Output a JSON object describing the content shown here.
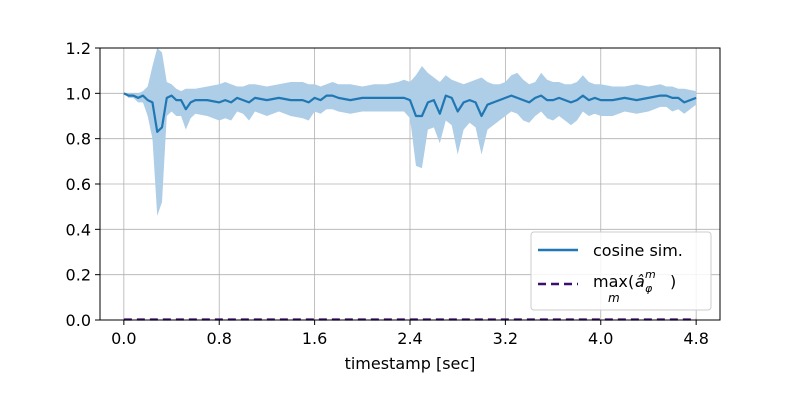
{
  "chart_data": {
    "type": "line",
    "title": "",
    "xlabel": "timestamp [sec]",
    "ylabel": "",
    "xlim": [
      -0.2,
      5.0
    ],
    "ylim": [
      0.0,
      1.2
    ],
    "xticks": [
      "0.0",
      "0.8",
      "1.6",
      "2.4",
      "3.2",
      "4.0",
      "4.8"
    ],
    "yticks": [
      "0.0",
      "0.2",
      "0.4",
      "0.6",
      "0.8",
      "1.0",
      "1.2"
    ],
    "grid": true,
    "legend_position": "lower-right",
    "series": [
      {
        "name": "cosine sim.",
        "color": "#1f77b4",
        "band_color": "#aecde6",
        "x": [
          0.0,
          0.04,
          0.08,
          0.12,
          0.16,
          0.2,
          0.24,
          0.28,
          0.32,
          0.36,
          0.4,
          0.44,
          0.48,
          0.52,
          0.56,
          0.6,
          0.7,
          0.8,
          0.85,
          0.9,
          0.95,
          1.0,
          1.05,
          1.1,
          1.2,
          1.3,
          1.4,
          1.5,
          1.55,
          1.6,
          1.65,
          1.7,
          1.75,
          1.8,
          1.9,
          2.0,
          2.1,
          2.2,
          2.3,
          2.35,
          2.4,
          2.45,
          2.5,
          2.55,
          2.6,
          2.65,
          2.7,
          2.75,
          2.8,
          2.85,
          2.9,
          2.95,
          3.0,
          3.05,
          3.1,
          3.15,
          3.2,
          3.25,
          3.3,
          3.35,
          3.4,
          3.45,
          3.5,
          3.55,
          3.6,
          3.65,
          3.7,
          3.75,
          3.8,
          3.85,
          3.9,
          3.95,
          4.0,
          4.1,
          4.2,
          4.3,
          4.4,
          4.5,
          4.55,
          4.6,
          4.65,
          4.7,
          4.8
        ],
        "values": [
          1.0,
          0.99,
          0.99,
          0.98,
          0.99,
          0.97,
          0.96,
          0.83,
          0.85,
          0.98,
          0.99,
          0.97,
          0.97,
          0.93,
          0.96,
          0.97,
          0.97,
          0.96,
          0.97,
          0.96,
          0.98,
          0.97,
          0.96,
          0.98,
          0.97,
          0.98,
          0.97,
          0.97,
          0.96,
          0.98,
          0.97,
          0.99,
          0.99,
          0.98,
          0.97,
          0.98,
          0.98,
          0.98,
          0.98,
          0.98,
          0.97,
          0.9,
          0.9,
          0.96,
          0.97,
          0.91,
          0.99,
          0.98,
          0.92,
          0.96,
          0.97,
          0.96,
          0.9,
          0.95,
          0.96,
          0.97,
          0.98,
          0.99,
          0.98,
          0.97,
          0.96,
          0.98,
          0.99,
          0.97,
          0.97,
          0.98,
          0.97,
          0.96,
          0.97,
          0.99,
          0.97,
          0.98,
          0.97,
          0.97,
          0.98,
          0.97,
          0.98,
          0.99,
          0.99,
          0.98,
          0.98,
          0.96,
          0.98
        ],
        "upper": [
          1.0,
          1.0,
          1.0,
          1.0,
          1.01,
          1.03,
          1.12,
          1.2,
          1.18,
          1.05,
          1.04,
          1.02,
          1.01,
          1.02,
          1.02,
          1.02,
          1.03,
          1.04,
          1.05,
          1.04,
          1.03,
          1.03,
          1.04,
          1.04,
          1.03,
          1.04,
          1.05,
          1.05,
          1.04,
          1.04,
          1.03,
          1.04,
          1.05,
          1.04,
          1.04,
          1.03,
          1.04,
          1.04,
          1.05,
          1.06,
          1.05,
          1.08,
          1.12,
          1.09,
          1.07,
          1.05,
          1.08,
          1.06,
          1.05,
          1.04,
          1.05,
          1.06,
          1.07,
          1.05,
          1.04,
          1.04,
          1.05,
          1.08,
          1.09,
          1.06,
          1.04,
          1.05,
          1.09,
          1.06,
          1.05,
          1.05,
          1.04,
          1.04,
          1.05,
          1.08,
          1.05,
          1.04,
          1.04,
          1.03,
          1.03,
          1.04,
          1.03,
          1.04,
          1.03,
          1.03,
          1.02,
          1.02,
          1.01
        ],
        "lower": [
          1.0,
          0.98,
          0.98,
          0.96,
          0.96,
          0.9,
          0.8,
          0.46,
          0.52,
          0.9,
          0.92,
          0.9,
          0.9,
          0.84,
          0.89,
          0.91,
          0.9,
          0.88,
          0.89,
          0.88,
          0.92,
          0.91,
          0.88,
          0.92,
          0.9,
          0.92,
          0.9,
          0.89,
          0.88,
          0.92,
          0.91,
          0.93,
          0.93,
          0.92,
          0.91,
          0.92,
          0.92,
          0.92,
          0.92,
          0.92,
          0.89,
          0.68,
          0.67,
          0.84,
          0.85,
          0.78,
          0.88,
          0.86,
          0.73,
          0.84,
          0.87,
          0.85,
          0.73,
          0.84,
          0.86,
          0.88,
          0.9,
          0.92,
          0.91,
          0.88,
          0.87,
          0.9,
          0.92,
          0.89,
          0.88,
          0.9,
          0.88,
          0.86,
          0.88,
          0.92,
          0.9,
          0.91,
          0.9,
          0.9,
          0.92,
          0.91,
          0.92,
          0.94,
          0.94,
          0.92,
          0.93,
          0.91,
          0.95
        ]
      },
      {
        "name": "max_m(â_φ^m)",
        "legend_label": {
          "main": "max",
          "sub": "m",
          "paren_open": "(",
          "a": "â",
          "a_sub": "φ",
          "a_sup": "m",
          "paren_close": ")"
        },
        "color": "#3b0f70",
        "style": "dashed",
        "x": [
          0.0,
          4.8
        ],
        "values": [
          0.0,
          0.0
        ]
      }
    ]
  }
}
